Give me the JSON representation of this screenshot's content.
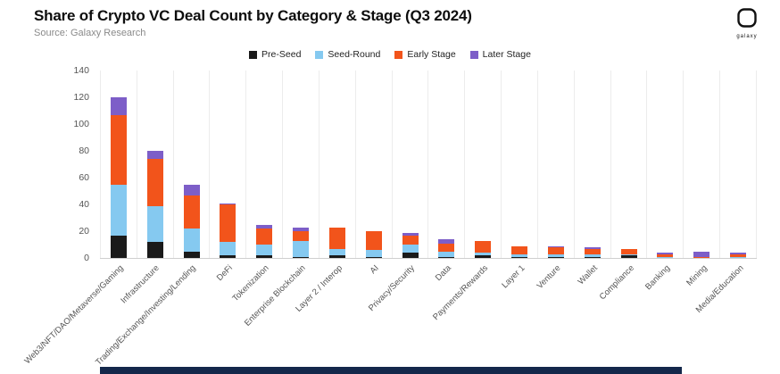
{
  "header": {
    "title": "Share of Crypto VC Deal Count by Category & Stage (Q3 2024)",
    "source": "Source: Galaxy Research",
    "logo_text": "galaxy"
  },
  "chart_data": {
    "type": "bar",
    "stacked": true,
    "title": "Share of Crypto VC Deal Count by Category & Stage (Q3 2024)",
    "xlabel": "",
    "ylabel": "",
    "ylim": [
      0,
      140
    ],
    "ytick_step": 20,
    "grid": "vertical",
    "legend_position": "top",
    "categories": [
      "Web3/NFT/DAO/Metaverse/Gaming",
      "Infrastructure",
      "Trading/Exchange/Investing/Lending",
      "DeFi",
      "Tokenization",
      "Enterprise Blockchain",
      "Layer 2 / Interop",
      "AI",
      "Privacy/Security",
      "Data",
      "Payments/Rewards",
      "Layer 1",
      "Venture",
      "Wallet",
      "Compliance",
      "Banking",
      "Mining",
      "Media/Education"
    ],
    "series": [
      {
        "name": "Pre-Seed",
        "color": "#1a1a1a",
        "values": [
          17,
          12,
          5,
          2,
          2,
          1,
          2,
          1,
          4,
          1,
          2,
          1,
          1,
          1,
          2,
          0,
          0,
          0
        ]
      },
      {
        "name": "Seed-Round",
        "color": "#85c9f0",
        "values": [
          38,
          27,
          17,
          10,
          8,
          12,
          5,
          5,
          6,
          4,
          2,
          2,
          2,
          2,
          1,
          1,
          0,
          1
        ]
      },
      {
        "name": "Early Stage",
        "color": "#f2541b",
        "values": [
          52,
          35,
          25,
          28,
          12,
          7,
          16,
          14,
          7,
          6,
          9,
          6,
          5,
          4,
          4,
          2,
          1,
          2
        ]
      },
      {
        "name": "Later Stage",
        "color": "#7d5ec8",
        "values": [
          13,
          6,
          8,
          1,
          3,
          3,
          0,
          0,
          2,
          3,
          0,
          0,
          1,
          1,
          0,
          1,
          4,
          1
        ]
      }
    ]
  },
  "footer": {
    "accent_color": "#14284b"
  }
}
